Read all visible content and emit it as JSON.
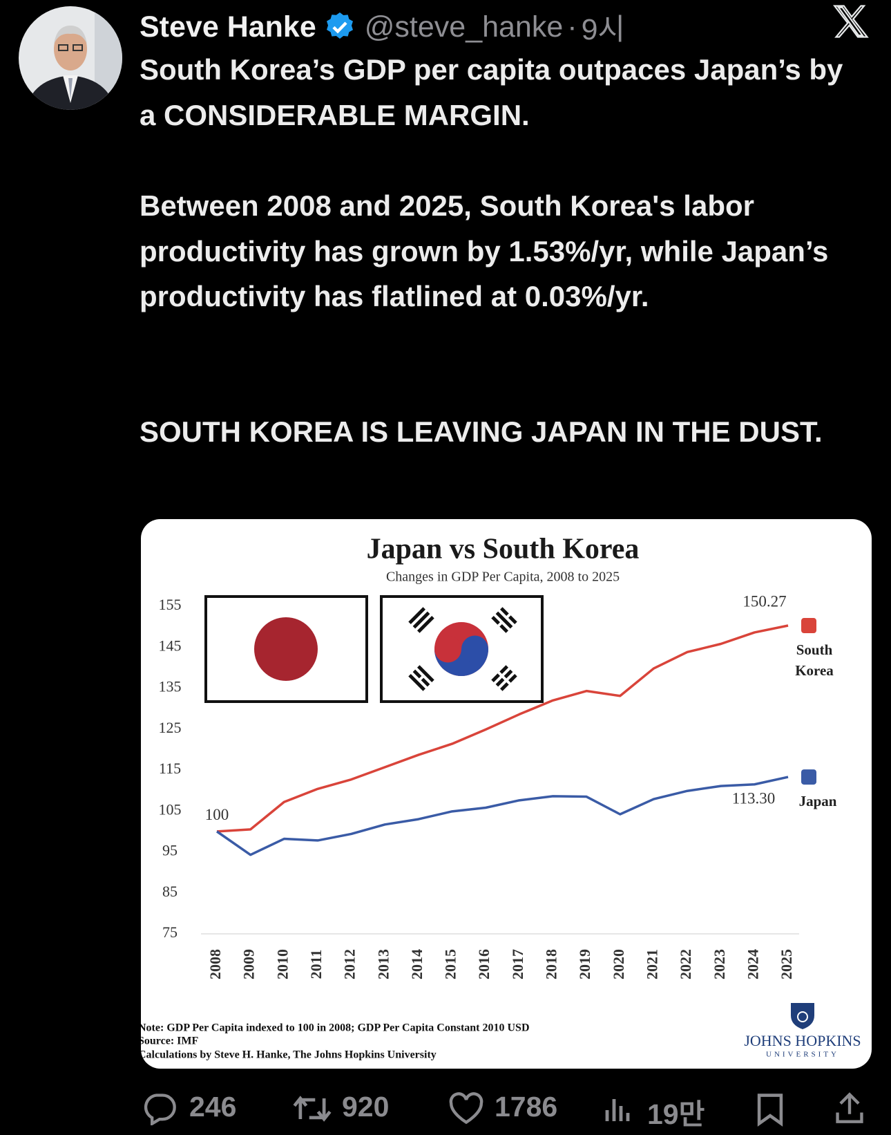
{
  "tweet": {
    "author": "Steve Hanke",
    "handle": "@steve_hanke",
    "time": "9시",
    "paragraphs": [
      "South Korea’s GDP per capita outpaces Japan’s by a CONSIDERABLE MARGIN.",
      "Between 2008 and 2025, South Korea's labor productivity has grown by 1.53%/yr, while Japan’s productivity has flatlined at 0.03%/yr.",
      "SOUTH KOREA IS LEAVING JAPAN IN THE DUST."
    ],
    "replies": 246,
    "reposts": 920,
    "likes": 1786,
    "views": "19만"
  },
  "chart_data": {
    "type": "line",
    "title": "Japan vs South Korea",
    "subtitle": "Changes in GDP Per Capita, 2008 to 2025",
    "categories": [
      "2008",
      "2009",
      "2010",
      "2011",
      "2012",
      "2013",
      "2014",
      "2015",
      "2016",
      "2017",
      "2018",
      "2019",
      "2020",
      "2021",
      "2022",
      "2023",
      "2024",
      "2025"
    ],
    "series": [
      {
        "name": "South Korea",
        "color": "#d9443a",
        "values": [
          100,
          100.5,
          107.2,
          110.4,
          112.7,
          115.7,
          118.7,
          121.4,
          124.9,
          128.6,
          132,
          134.3,
          133.1,
          139.8,
          143.8,
          145.8,
          148.6,
          150.27
        ],
        "value_labels": [
          "100",
          null,
          null,
          null,
          null,
          null,
          null,
          null,
          null,
          null,
          null,
          null,
          null,
          null,
          null,
          null,
          null,
          "150.27"
        ]
      },
      {
        "name": "Japan",
        "color": "#3a5ba6",
        "values": [
          100,
          94.3,
          98.2,
          97.8,
          99.4,
          101.7,
          103,
          104.9,
          105.8,
          107.6,
          108.6,
          108.5,
          104.2,
          107.9,
          109.9,
          111.1,
          111.5,
          113.3
        ],
        "value_labels": [
          null,
          null,
          null,
          null,
          null,
          null,
          null,
          null,
          null,
          null,
          null,
          null,
          null,
          null,
          null,
          null,
          null,
          "113.30"
        ]
      }
    ],
    "ylim": [
      75,
      155
    ],
    "yticks": [
      75,
      85,
      95,
      105,
      115,
      125,
      135,
      145,
      155
    ],
    "grid": false,
    "notes": [
      "Note: GDP Per Capita indexed to 100 in 2008; GDP Per Capita Constant 2010 USD",
      "Source: IMF",
      "Calculations by Steve H. Hanke, The Johns Hopkins University"
    ],
    "logo": [
      "JOHNS HOPKINS",
      "UNIVERSITY"
    ]
  }
}
